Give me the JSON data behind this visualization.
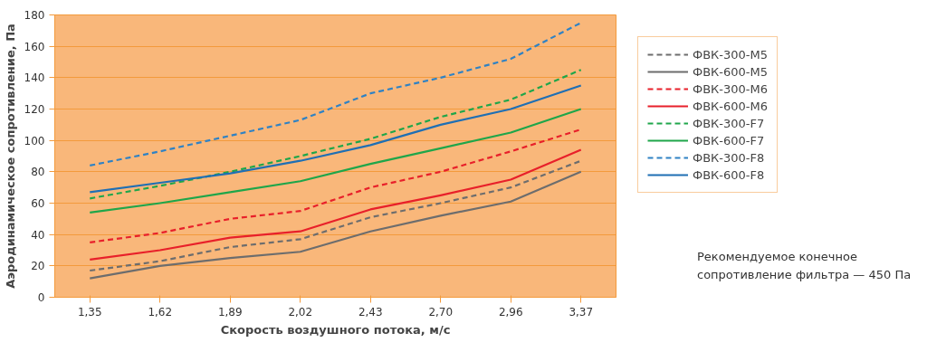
{
  "chart_data": {
    "type": "line",
    "xlabel": "Скорость воздушного потока, м/с",
    "ylabel": "Аэродинамическое сопротивление, Па",
    "categories": [
      "1,35",
      "1,62",
      "1,89",
      "2,02",
      "2,43",
      "2,70",
      "2,96",
      "3,37"
    ],
    "ylim": [
      0,
      180
    ],
    "yticks": [
      0,
      20,
      40,
      60,
      80,
      100,
      120,
      140,
      160,
      180
    ],
    "grid": "y",
    "legend": "right",
    "marker": "none",
    "series": [
      {
        "name": "ФВК-300-М5",
        "color": "#6d6d6d",
        "line_style": "dashed",
        "values": [
          17,
          23,
          32,
          37,
          51,
          60,
          70,
          87
        ]
      },
      {
        "name": "ФВК-600-М5",
        "color": "#6d6d6d",
        "line_style": "solid",
        "values": [
          12,
          20,
          25,
          29,
          42,
          52,
          61,
          80
        ]
      },
      {
        "name": "ФВК-300-М6",
        "color": "#e8202a",
        "line_style": "dashed",
        "values": [
          35,
          41,
          50,
          55,
          70,
          80,
          93,
          107
        ]
      },
      {
        "name": "ФВК-600-М6",
        "color": "#e8202a",
        "line_style": "solid",
        "values": [
          24,
          30,
          38,
          42,
          56,
          65,
          75,
          94
        ]
      },
      {
        "name": "ФВК-300-F7",
        "color": "#1fa64a",
        "line_style": "dashed",
        "values": [
          63,
          71,
          80,
          90,
          101,
          115,
          126,
          145
        ]
      },
      {
        "name": "ФВК-600-F7",
        "color": "#1fa64a",
        "line_style": "solid",
        "values": [
          54,
          60,
          67,
          74,
          85,
          95,
          105,
          120
        ]
      },
      {
        "name": "ФВК-300-F8",
        "color": "#2f82c4",
        "line_style": "dashed",
        "values": [
          84,
          93,
          103,
          113,
          130,
          140,
          152,
          175
        ]
      },
      {
        "name": "ФВК-600-F8",
        "color": "#1f6fb4",
        "line_style": "solid",
        "values": [
          67,
          73,
          79,
          87,
          97,
          110,
          120,
          135
        ]
      }
    ],
    "annotations": [
      "Рекомендуемое конечное сопротивление фильтра — 450 Па"
    ]
  }
}
